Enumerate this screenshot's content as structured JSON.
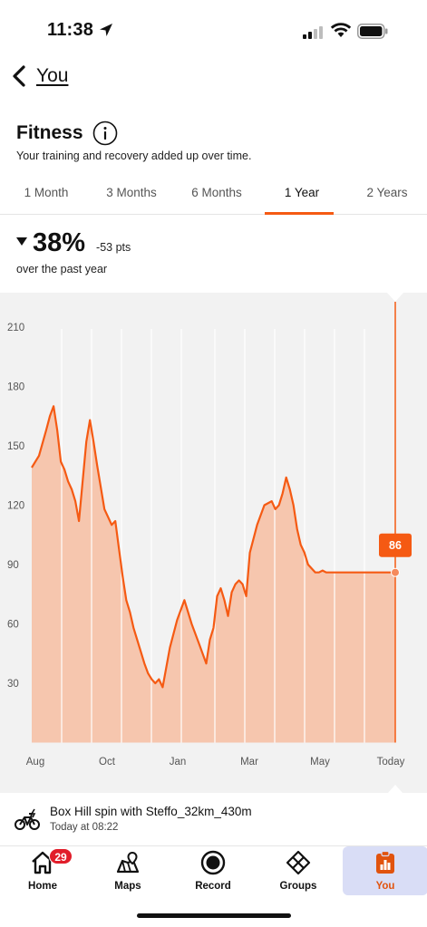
{
  "status": {
    "time": "11:38"
  },
  "header": {
    "back_label": "You"
  },
  "page": {
    "title": "Fitness",
    "subtitle": "Your training and recovery added up over time."
  },
  "tabs": [
    {
      "label": "1 Month",
      "active": false
    },
    {
      "label": "3 Months",
      "active": false
    },
    {
      "label": "6 Months",
      "active": false
    },
    {
      "label": "1 Year",
      "active": true
    },
    {
      "label": "2 Years",
      "active": false
    }
  ],
  "summary": {
    "change_pct": "38%",
    "change_pts": "-53 pts",
    "period": "over the past year"
  },
  "colors": {
    "accent": "#f55a13",
    "area_fill": "#f6c6ae",
    "panel_bg": "#f2f2f2"
  },
  "chart_data": {
    "type": "area",
    "y_ticks": [
      210,
      180,
      150,
      120,
      90,
      60,
      30
    ],
    "x_ticks": [
      "Aug",
      "Oct",
      "Jan",
      "Mar",
      "May",
      "Today"
    ],
    "ylim": [
      0,
      220
    ],
    "current_value_label": "86",
    "x": [
      0,
      0.02,
      0.04,
      0.05,
      0.06,
      0.07,
      0.08,
      0.09,
      0.1,
      0.11,
      0.12,
      0.13,
      0.15,
      0.16,
      0.17,
      0.18,
      0.2,
      0.21,
      0.22,
      0.23,
      0.24,
      0.25,
      0.26,
      0.27,
      0.28,
      0.29,
      0.3,
      0.31,
      0.32,
      0.33,
      0.34,
      0.35,
      0.36,
      0.38,
      0.4,
      0.42,
      0.44,
      0.46,
      0.48,
      0.49,
      0.5,
      0.51,
      0.52,
      0.53,
      0.54,
      0.55,
      0.56,
      0.57,
      0.58,
      0.59,
      0.6,
      0.62,
      0.64,
      0.66,
      0.67,
      0.68,
      0.69,
      0.7,
      0.71,
      0.72,
      0.73,
      0.74,
      0.75,
      0.76,
      0.77,
      0.78,
      0.79,
      0.8,
      0.81,
      0.82,
      0.83,
      0.84,
      0.85,
      0.86,
      0.87,
      0.88,
      0.89,
      0.9,
      0.91,
      0.92,
      0.93,
      0.94,
      0.95,
      0.96,
      0.97,
      0.98,
      0.99,
      1.0
    ],
    "values": [
      139,
      145,
      158,
      165,
      170,
      158,
      142,
      138,
      132,
      128,
      122,
      112,
      152,
      163,
      152,
      140,
      118,
      114,
      110,
      112,
      98,
      84,
      72,
      66,
      58,
      52,
      46,
      40,
      35,
      32,
      30,
      32,
      28,
      48,
      62,
      72,
      60,
      50,
      40,
      52,
      58,
      74,
      78,
      72,
      64,
      76,
      80,
      82,
      80,
      74,
      96,
      110,
      120,
      122,
      118,
      120,
      126,
      134,
      128,
      120,
      108,
      100,
      96,
      90,
      88,
      86,
      86,
      87,
      86,
      86,
      86,
      86,
      86,
      86,
      86,
      86,
      86,
      86,
      86,
      86,
      86,
      86,
      86,
      86,
      86,
      86,
      86,
      86
    ]
  },
  "activity": {
    "title": "Box Hill spin with Steffo_32km_430m",
    "time": "Today at 08:22"
  },
  "nav": [
    {
      "label": "Home",
      "badge": "29",
      "icon": "home-icon",
      "active": false
    },
    {
      "label": "Maps",
      "icon": "maps-icon",
      "active": false
    },
    {
      "label": "Record",
      "icon": "record-icon",
      "active": false
    },
    {
      "label": "Groups",
      "icon": "groups-icon",
      "active": false
    },
    {
      "label": "You",
      "icon": "you-icon",
      "active": true
    }
  ]
}
